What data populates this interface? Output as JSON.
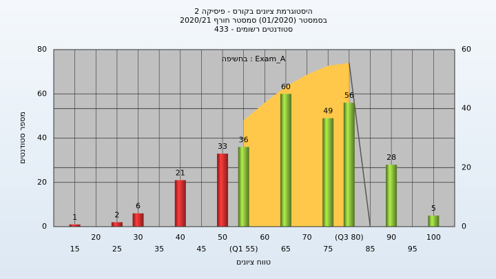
{
  "chart_data": {
    "type": "bar",
    "title": [
      "היסטוגרמת ציונים בקורס - פיסיקה 2",
      "בסמסטר (01/2020) סמסטר חורף 2020/21",
      "433 - סטודנטים רשומים"
    ],
    "annotation": "בחשיפה : Exam_A",
    "xlabel": "טווח ציונים",
    "ylabel": "מספר סטודנטים",
    "xlim": [
      10,
      105
    ],
    "xticks": [
      15,
      20,
      25,
      30,
      35,
      40,
      45,
      50,
      {
        "value": 55,
        "label": "(Q1 55)"
      },
      60,
      65,
      70,
      75,
      {
        "value": 80,
        "label": "(Q3 80)"
      },
      85,
      90,
      95,
      100
    ],
    "ylim": [
      0,
      80
    ],
    "yticks": [
      0,
      20,
      40,
      60,
      80
    ],
    "y2lim": [
      0,
      60
    ],
    "y2ticks": [
      0,
      20,
      40,
      60
    ],
    "grid": true,
    "series": [
      {
        "type": "area",
        "axis": "y2",
        "color": "#ffc84a",
        "x": [
          55,
          60,
          65,
          70,
          75,
          80
        ],
        "values": [
          36,
          42,
          47.5,
          51.5,
          54.5,
          55.5
        ]
      },
      {
        "type": "line",
        "axis": "y2",
        "color": "#555555",
        "x": [
          80,
          85
        ],
        "values": [
          55.5,
          0
        ]
      },
      {
        "type": "bar",
        "color": "#e03030",
        "x": [
          15,
          25,
          30,
          40,
          50
        ],
        "values": [
          1,
          2,
          6,
          21,
          33
        ]
      },
      {
        "type": "bar",
        "color": "#8cbf3c",
        "x": [
          55,
          65,
          75,
          80,
          90,
          100
        ],
        "values": [
          36,
          60,
          49,
          56,
          28,
          5
        ]
      }
    ]
  }
}
